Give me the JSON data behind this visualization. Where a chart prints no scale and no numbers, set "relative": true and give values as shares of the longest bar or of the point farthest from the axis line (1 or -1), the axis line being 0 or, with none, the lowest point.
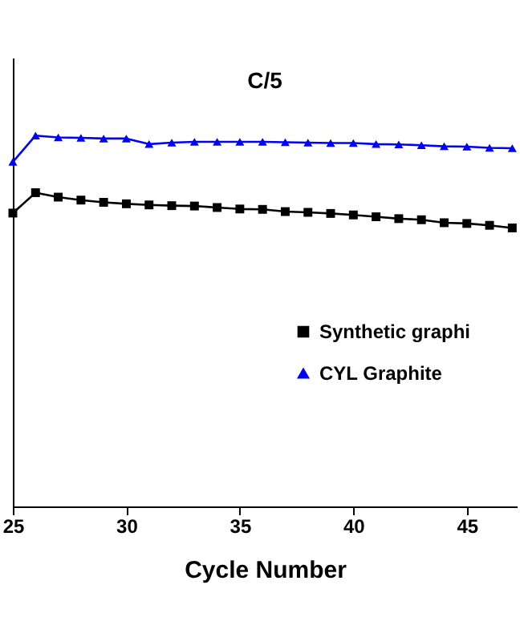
{
  "chart_data": {
    "type": "line",
    "title": "C/5",
    "xlabel": "Cycle Number",
    "relative": true,
    "xlim": [
      25,
      47.2
    ],
    "xticks": [
      25,
      30,
      35,
      40,
      45
    ],
    "grid": false,
    "legend": "right",
    "line_style": "solid",
    "x": [
      25,
      26,
      27,
      28,
      29,
      30,
      31,
      32,
      33,
      34,
      35,
      36,
      37,
      38,
      39,
      40,
      41,
      42,
      43,
      44,
      45,
      46,
      47
    ],
    "series": [
      {
        "name": "Synthetic graphi",
        "color": "#000000",
        "marker": "square",
        "values": [
          0.791,
          0.846,
          0.834,
          0.826,
          0.82,
          0.816,
          0.813,
          0.811,
          0.81,
          0.806,
          0.802,
          0.801,
          0.795,
          0.793,
          0.79,
          0.786,
          0.781,
          0.776,
          0.773,
          0.765,
          0.763,
          0.758,
          0.751
        ]
      },
      {
        "name": "CYL Graphite",
        "color": "#0000ff",
        "marker": "triangle",
        "values": [
          0.929,
          1.0,
          0.995,
          0.994,
          0.992,
          0.992,
          0.977,
          0.981,
          0.983,
          0.983,
          0.983,
          0.983,
          0.982,
          0.981,
          0.98,
          0.98,
          0.977,
          0.976,
          0.974,
          0.971,
          0.97,
          0.967,
          0.966
        ]
      }
    ]
  }
}
